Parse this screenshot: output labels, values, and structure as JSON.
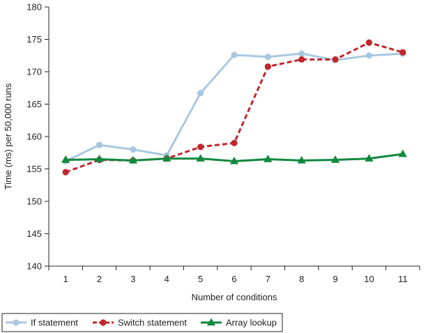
{
  "chart_data": {
    "type": "line",
    "title": "",
    "xlabel": "Number of conditions",
    "ylabel": "Time (ms) per 50,000 runs",
    "x": [
      1,
      2,
      3,
      4,
      5,
      6,
      7,
      8,
      9,
      10,
      11
    ],
    "ylim": [
      140,
      180
    ],
    "yticks": [
      140,
      145,
      150,
      155,
      160,
      165,
      170,
      175,
      180
    ],
    "grid": false,
    "legend_position": "bottom",
    "series": [
      {
        "name": "If statement",
        "color": "#a9c8e0",
        "marker": "circle",
        "line_style": "solid",
        "values": [
          156.2,
          158.7,
          158.0,
          157.1,
          166.7,
          172.6,
          172.3,
          172.8,
          171.8,
          172.5,
          172.8
        ]
      },
      {
        "name": "Switch statement",
        "color": "#c1272d",
        "marker": "circle",
        "line_style": "dashed",
        "values": [
          154.5,
          156.4,
          156.3,
          156.6,
          158.4,
          159.0,
          170.8,
          171.9,
          171.9,
          174.5,
          173.0
        ]
      },
      {
        "name": "Array lookup",
        "color": "#10893e",
        "marker": "triangle",
        "line_style": "solid",
        "values": [
          156.4,
          156.5,
          156.3,
          156.6,
          156.6,
          156.2,
          156.5,
          156.3,
          156.4,
          156.6,
          157.3
        ]
      }
    ]
  }
}
